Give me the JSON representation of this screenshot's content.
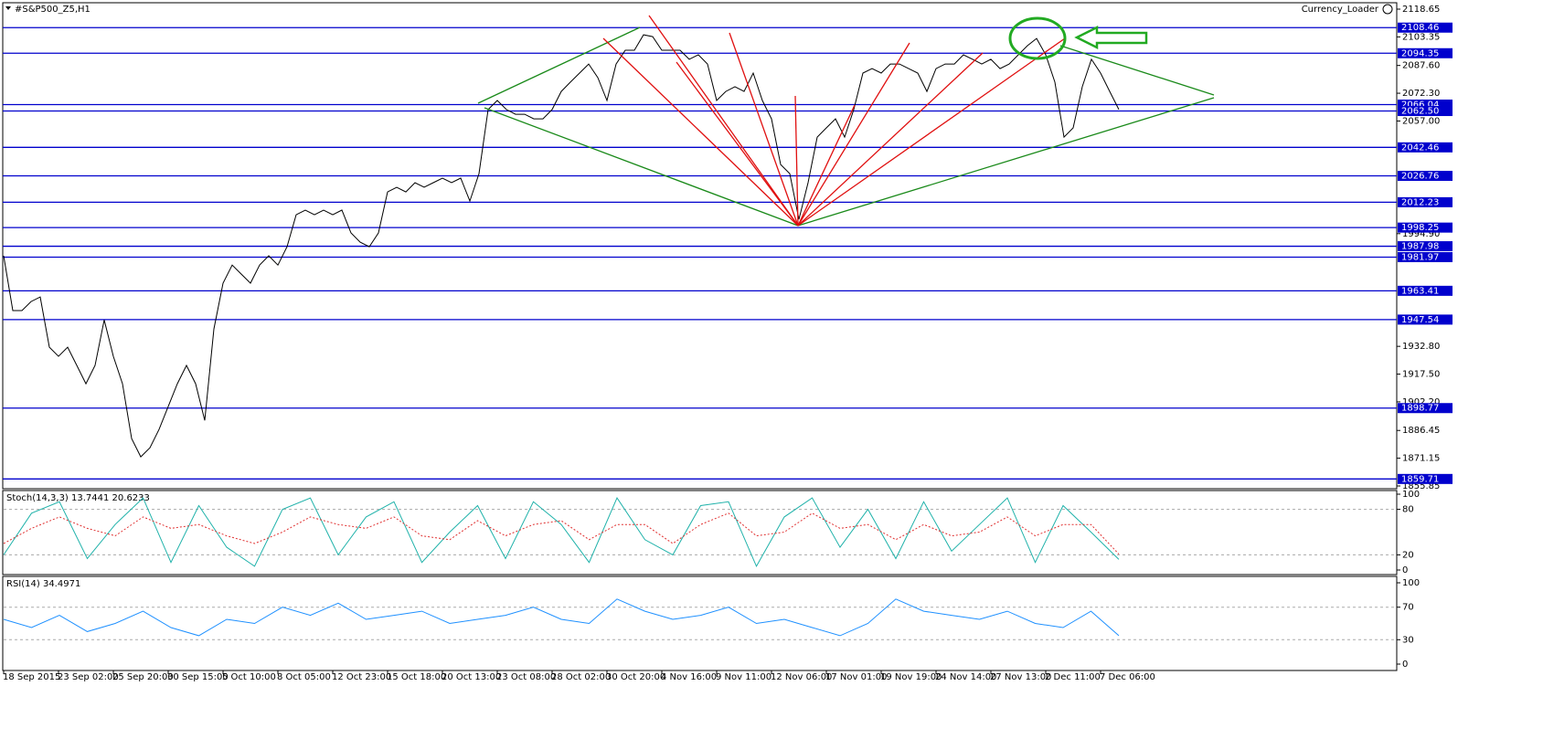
{
  "chart_data": [
    {
      "type": "line",
      "title": "#S&P500_Z5,H1",
      "annotation": "Currency_Loader",
      "categories": [
        "18 Sep 2015",
        null,
        null,
        null,
        null,
        null,
        "23 Sep 02:00",
        null,
        null,
        null,
        null,
        null,
        "25 Sep 20:00",
        null,
        null,
        null,
        null,
        null,
        "30 Sep 15:00",
        null,
        null,
        null,
        null,
        null,
        "5 Oct 10:00",
        null,
        null,
        null,
        null,
        null,
        "8 Oct 05:00",
        null,
        null,
        null,
        null,
        null,
        "12 Oct 23:00",
        null,
        null,
        null,
        null,
        null,
        "15 Oct 18:00",
        null,
        null,
        null,
        null,
        null,
        "20 Oct 13:00",
        null,
        null,
        null,
        null,
        null,
        "23 Oct 08:00",
        null,
        null,
        null,
        null,
        null,
        "28 Oct 02:00",
        null,
        null,
        null,
        null,
        null,
        "30 Oct 20:00",
        null,
        null,
        null,
        null,
        null,
        "4 Nov 16:00",
        null,
        null,
        null,
        null,
        null,
        "9 Nov 11:00",
        null,
        null,
        null,
        null,
        null,
        "12 Nov 06:00",
        null,
        null,
        null,
        null,
        null,
        "17 Nov 01:00",
        null,
        null,
        null,
        null,
        null,
        "19 Nov 19:00",
        null,
        null,
        null,
        null,
        null,
        "24 Nov 14:00",
        null,
        null,
        null,
        null,
        null,
        "27 Nov 13:00",
        null,
        null,
        null,
        null,
        null,
        "2 Dec 11:00",
        null,
        null,
        null,
        null,
        null,
        "7 Dec 06:00",
        null,
        null
      ],
      "series": [
        {
          "color": "#000000",
          "values": [
            1982.7,
            1952.5,
            1952.5,
            1957.5,
            1960.0,
            1932.3,
            1927.3,
            1932.3,
            1922.3,
            1912.2,
            1922.3,
            1947.4,
            1927.3,
            1912.2,
            1882.0,
            1871.9,
            1876.9,
            1887.0,
            1899.6,
            1912.2,
            1922.3,
            1912.2,
            1892.0,
            1942.4,
            1967.6,
            1977.6,
            1972.6,
            1967.6,
            1977.6,
            1982.7,
            1977.6,
            1987.7,
            2005.3,
            2007.9,
            2005.3,
            2007.9,
            2005.3,
            2007.9,
            1995.3,
            1990.2,
            1987.7,
            1995.3,
            2017.9,
            2020.5,
            2017.9,
            2023.0,
            2020.5,
            2023.0,
            2025.5,
            2023.0,
            2025.5,
            2012.9,
            2028.0,
            2063.3,
            2068.3,
            2063.3,
            2060.7,
            2060.7,
            2058.2,
            2058.2,
            2063.3,
            2073.3,
            2078.4,
            2083.4,
            2088.4,
            2080.9,
            2068.3,
            2088.4,
            2096.0,
            2096.0,
            2104.5,
            2103.5,
            2096.0,
            2096.0,
            2096.0,
            2091.0,
            2093.5,
            2088.4,
            2068.3,
            2073.3,
            2075.9,
            2073.3,
            2083.4,
            2068.3,
            2058.2,
            2033.0,
            2028.0,
            2002.8,
            2023.0,
            2048.1,
            2053.2,
            2058.2,
            2048.1,
            2063.3,
            2083.4,
            2085.9,
            2083.4,
            2088.4,
            2088.4,
            2085.9,
            2083.4,
            2073.3,
            2085.9,
            2088.4,
            2088.4,
            2093.5,
            2091.0,
            2088.4,
            2091.0,
            2085.9,
            2088.4,
            2093.5,
            2098.5,
            2102.5,
            2093.5,
            2078.4,
            2048.1,
            2053.2,
            2075.9,
            2091.0,
            2083.4,
            2073.3,
            2063.3
          ]
        }
      ],
      "ylim": [
        1855.85,
        2118.65
      ],
      "yticks": [
        2118.65,
        2103.35,
        {
          "value": 2087.6,
          "label": "2087.60"
        },
        {
          "value": 2072.3,
          "label": "2072.30"
        },
        {
          "value": 2057,
          "label": "2057.00"
        },
        {
          "value": 1994.9,
          "label": "1994.90"
        },
        {
          "value": 1932.8,
          "label": "1932.80"
        },
        {
          "value": 1917.5,
          "label": "1917.50"
        },
        {
          "value": 1902.2,
          "label": "1902.20"
        },
        1886.45,
        1871.15,
        1855.85
      ],
      "level_color": "#0000cd",
      "levels": [
        2108.46,
        2094.35,
        2066.04,
        {
          "value": 2062.5,
          "label": "2062.50"
        },
        2042.46,
        2026.76,
        2012.23,
        1998.25,
        1987.98,
        1981.97,
        1963.41,
        1947.54,
        1898.77,
        1859.71
      ]
    },
    {
      "type": "line",
      "title": "Stoch(14,3,3) 13.7441 20.6233",
      "series": [
        {
          "color": "#20b2aa",
          "values": [
            20,
            75,
            90,
            15,
            60,
            95,
            10,
            85,
            30,
            5,
            80,
            95,
            20,
            70,
            90,
            10,
            50,
            85,
            15,
            90,
            60,
            10,
            95,
            40,
            20,
            85,
            90,
            5,
            70,
            95,
            30,
            80,
            15,
            90,
            25,
            60,
            95,
            10,
            85,
            50,
            14
          ]
        },
        {
          "color": "#e03030",
          "dashed": true,
          "values": [
            35,
            55,
            70,
            55,
            45,
            70,
            55,
            60,
            45,
            35,
            50,
            70,
            60,
            55,
            70,
            45,
            40,
            65,
            45,
            60,
            65,
            40,
            60,
            60,
            35,
            60,
            75,
            45,
            50,
            75,
            55,
            60,
            40,
            60,
            45,
            50,
            70,
            45,
            60,
            60,
            21
          ]
        }
      ],
      "ylim": [
        0,
        100
      ],
      "yticks": [
        0,
        20,
        80,
        100
      ]
    },
    {
      "type": "line",
      "title": "RSI(14) 34.4971",
      "series": [
        {
          "color": "#1e90ff",
          "values": [
            55,
            45,
            60,
            40,
            50,
            65,
            45,
            35,
            55,
            50,
            70,
            60,
            75,
            55,
            60,
            65,
            50,
            55,
            60,
            70,
            55,
            50,
            80,
            65,
            55,
            60,
            70,
            50,
            55,
            45,
            35,
            50,
            80,
            65,
            60,
            55,
            65,
            50,
            45,
            65,
            35
          ]
        }
      ],
      "ylim": [
        0,
        100
      ],
      "yticks": [
        0,
        30,
        70,
        100
      ]
    }
  ]
}
